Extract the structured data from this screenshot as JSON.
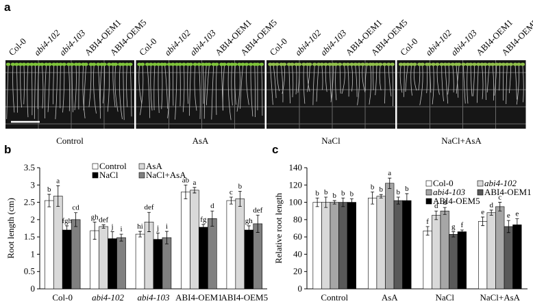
{
  "panel_a": {
    "label": "a",
    "genotypes": [
      "Col-0",
      "abi4-102",
      "abi4-103",
      "ABI4-OEM1",
      "ABI4-OEM5"
    ],
    "genotype_italic": [
      false,
      true,
      true,
      false,
      false
    ],
    "treatments": [
      "Control",
      "AsA",
      "NaCl",
      "NaCl+AsA"
    ]
  },
  "chart_data": [
    {
      "type": "bar",
      "panel": "b",
      "ylabel": "Root length (cm)",
      "categories": [
        "Col-0",
        "abi4-102",
        "abi4-103",
        "ABI4-OEM1",
        "ABI4-OEM5"
      ],
      "category_italic": [
        false,
        true,
        true,
        false,
        false
      ],
      "series": [
        {
          "name": "Control",
          "color": "#ffffff",
          "values": [
            2.55,
            1.68,
            1.58,
            2.8,
            2.55
          ],
          "errors": [
            0.18,
            0.25,
            0.08,
            0.2,
            0.1
          ],
          "letters": [
            "b",
            "gh",
            "hi",
            "ab",
            "c"
          ]
        },
        {
          "name": "AsA",
          "color": "#d9d9d9",
          "values": [
            2.68,
            1.8,
            1.93,
            2.85,
            2.6
          ],
          "errors": [
            0.3,
            0.05,
            0.28,
            0.08,
            0.22
          ],
          "letters": [
            "a",
            "def",
            "def",
            "a",
            "b"
          ]
        },
        {
          "name": "NaCl",
          "color": "#000000",
          "values": [
            1.7,
            1.45,
            1.43,
            1.78,
            1.7
          ],
          "errors": [
            0.12,
            0.2,
            0.18,
            0.08,
            0.12
          ],
          "letters": [
            "fgh",
            "j",
            "j",
            "fg",
            "gh"
          ]
        },
        {
          "name": "NaCl+AsA",
          "color": "#808080",
          "values": [
            2.0,
            1.48,
            1.48,
            2.03,
            1.88
          ],
          "errors": [
            0.2,
            0.1,
            0.18,
            0.22,
            0.25
          ],
          "letters": [
            "cd",
            "i",
            "i",
            "d",
            "def"
          ]
        }
      ],
      "legend": "top-right",
      "ylim": [
        0,
        3.5
      ],
      "yticks": [
        0,
        0.5,
        1,
        1.5,
        2,
        2.5,
        3,
        3.5
      ]
    },
    {
      "type": "bar",
      "panel": "c",
      "ylabel": "Relative root length",
      "categories": [
        "Control",
        "AsA",
        "NaCl",
        "NaCl+AsA"
      ],
      "series": [
        {
          "name": "Col-0",
          "italic": false,
          "color": "#ffffff",
          "values": [
            100,
            105,
            67,
            78
          ],
          "errors": [
            5,
            7,
            5,
            5
          ],
          "letters": [
            "b",
            "b",
            "f",
            "e"
          ]
        },
        {
          "name": "abi4-102",
          "italic": true,
          "color": "#d9d9d9",
          "values": [
            100,
            107,
            85,
            88
          ],
          "errors": [
            6,
            2,
            5,
            3
          ],
          "letters": [
            "b",
            "b",
            "d",
            "d"
          ]
        },
        {
          "name": "abi4-103",
          "italic": true,
          "color": "#a6a6a6",
          "values": [
            100,
            122,
            90,
            95
          ],
          "errors": [
            2,
            6,
            4,
            5
          ],
          "letters": [
            "b",
            "a",
            "d",
            "c"
          ]
        },
        {
          "name": "ABI4-OEM1",
          "italic": false,
          "color": "#595959",
          "values": [
            100,
            102,
            63,
            72
          ],
          "errors": [
            5,
            4,
            3,
            7
          ],
          "letters": [
            "b",
            "b",
            "g",
            "e"
          ]
        },
        {
          "name": "ABI4-OEM5",
          "italic": false,
          "color": "#000000",
          "values": [
            100,
            102,
            66,
            74
          ],
          "errors": [
            4,
            8,
            2,
            7
          ],
          "letters": [
            "b",
            "b",
            "f",
            "e"
          ]
        }
      ],
      "legend": "top-right",
      "ylim": [
        0,
        140
      ],
      "yticks": [
        0,
        20,
        40,
        60,
        80,
        100,
        120,
        140
      ]
    }
  ]
}
